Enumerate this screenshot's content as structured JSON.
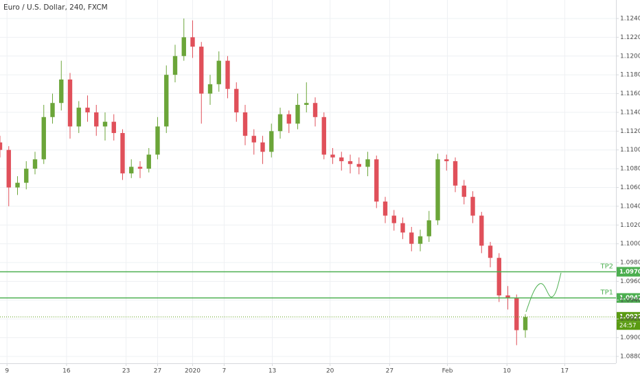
{
  "chart_data": {
    "type": "candlestick",
    "title": "Euro / U.S. Dollar, 240, FXCM",
    "open": [
      1.1108,
      1.11,
      1.106,
      1.1065,
      1.108,
      1.109,
      1.1135,
      1.115,
      1.1175,
      1.1125,
      1.1145,
      1.114,
      1.1125,
      1.113,
      1.1118,
      1.1075,
      1.1082,
      1.108,
      1.1095,
      1.1125,
      1.118,
      1.12,
      1.122,
      1.121,
      1.116,
      1.117,
      1.1195,
      1.1165,
      1.114,
      1.1115,
      1.1108,
      1.1098,
      1.112,
      1.1138,
      1.1128,
      1.1148,
      1.115,
      1.1135,
      1.1095,
      1.1092,
      1.1088,
      1.1085,
      1.1082,
      1.109,
      1.1045,
      1.103,
      1.1022,
      1.1012,
      1.1,
      1.1008,
      1.1025,
      1.109,
      1.1088,
      1.1062,
      1.105,
      1.103,
      1.0998,
      1.0985,
      1.0945,
      1.0942,
      1.0908
    ],
    "high": [
      1.1115,
      1.1104,
      1.1072,
      1.1088,
      1.1098,
      1.1148,
      1.116,
      1.1195,
      1.1182,
      1.1152,
      1.1158,
      1.1148,
      1.114,
      1.1138,
      1.1122,
      1.109,
      1.1088,
      1.1102,
      1.1135,
      1.119,
      1.1212,
      1.124,
      1.1238,
      1.1215,
      1.118,
      1.1205,
      1.12,
      1.1172,
      1.1148,
      1.1122,
      1.1115,
      1.1128,
      1.1145,
      1.1142,
      1.116,
      1.1172,
      1.1156,
      1.114,
      1.1102,
      1.1098,
      1.1095,
      1.1092,
      1.1098,
      1.1094,
      1.105,
      1.1036,
      1.1028,
      1.1018,
      1.1015,
      1.1035,
      1.1096,
      1.1095,
      1.1092,
      1.1068,
      1.1056,
      1.1034,
      1.1002,
      1.099,
      1.0955,
      1.0946,
      1.0925
    ],
    "low": [
      1.1092,
      1.104,
      1.1052,
      1.1058,
      1.1074,
      1.1085,
      1.1128,
      1.1142,
      1.1112,
      1.1118,
      1.113,
      1.1115,
      1.111,
      1.111,
      1.1068,
      1.107,
      1.107,
      1.1076,
      1.109,
      1.1118,
      1.1172,
      1.1195,
      1.1198,
      1.1128,
      1.1148,
      1.1162,
      1.1155,
      1.113,
      1.1105,
      1.1095,
      1.1085,
      1.1092,
      1.1112,
      1.1118,
      1.1122,
      1.114,
      1.1125,
      1.109,
      1.1085,
      1.1078,
      1.1075,
      1.1074,
      1.1072,
      1.1038,
      1.1022,
      1.1014,
      1.1005,
      1.0992,
      1.0992,
      1.1002,
      1.102,
      1.1078,
      1.1055,
      1.1042,
      1.1022,
      1.099,
      1.0975,
      1.0938,
      1.093,
      1.0892,
      1.09
    ],
    "close": [
      1.11,
      1.106,
      1.1065,
      1.108,
      1.109,
      1.1135,
      1.115,
      1.1175,
      1.1125,
      1.1145,
      1.114,
      1.1125,
      1.113,
      1.1118,
      1.1075,
      1.1082,
      1.108,
      1.1095,
      1.1125,
      1.118,
      1.12,
      1.122,
      1.121,
      1.116,
      1.117,
      1.1195,
      1.1165,
      1.114,
      1.1115,
      1.1108,
      1.1098,
      1.112,
      1.1138,
      1.1128,
      1.1148,
      1.115,
      1.1135,
      1.1095,
      1.1092,
      1.1088,
      1.1085,
      1.1082,
      1.109,
      1.1045,
      1.103,
      1.1022,
      1.1012,
      1.1,
      1.1008,
      1.1025,
      1.109,
      1.1088,
      1.1062,
      1.105,
      1.103,
      1.0998,
      1.0985,
      1.0945,
      1.0942,
      1.0908,
      1.0922
    ],
    "up_color": "#6ba539",
    "down_color": "#e0505a",
    "xlim": [
      0,
      70.35
    ],
    "xticks": [
      {
        "value": 0.8,
        "label": "9"
      },
      {
        "value": 7.6,
        "label": "16"
      },
      {
        "value": 14.4,
        "label": "23"
      },
      {
        "value": 18,
        "label": "27"
      },
      {
        "value": 22,
        "label": "2020"
      },
      {
        "value": 25.6,
        "label": "7"
      },
      {
        "value": 31.1,
        "label": "13"
      },
      {
        "value": 37.7,
        "label": "20"
      },
      {
        "value": 44.5,
        "label": "27"
      },
      {
        "value": 51.1,
        "label": "Feb"
      },
      {
        "value": 57.9,
        "label": "10"
      },
      {
        "value": 64.5,
        "label": "17"
      }
    ],
    "ylim": [
      1.08727,
      1.12597
    ],
    "yticks": [
      {
        "value": 1.088,
        "label": "1.08800"
      },
      {
        "value": 1.09,
        "label": "1.09000"
      },
      {
        "value": 1.092,
        "label": "1.09200"
      },
      {
        "value": 1.094,
        "label": "1.09400"
      },
      {
        "value": 1.096,
        "label": "1.09600"
      },
      {
        "value": 1.098,
        "label": "1.09800"
      },
      {
        "value": 1.1,
        "label": "1.10000"
      },
      {
        "value": 1.102,
        "label": "1.10200"
      },
      {
        "value": 1.104,
        "label": "1.10400"
      },
      {
        "value": 1.106,
        "label": "1.10600"
      },
      {
        "value": 1.108,
        "label": "1.10800"
      },
      {
        "value": 1.11,
        "label": "1.11000"
      },
      {
        "value": 1.112,
        "label": "1.11200"
      },
      {
        "value": 1.114,
        "label": "1.11400"
      },
      {
        "value": 1.116,
        "label": "1.11600"
      },
      {
        "value": 1.118,
        "label": "1.11800"
      },
      {
        "value": 1.12,
        "label": "1.12000"
      },
      {
        "value": 1.122,
        "label": "1.12200"
      },
      {
        "value": 1.124,
        "label": "1.12400"
      }
    ],
    "grid": true,
    "levels": [
      {
        "label": "TP2",
        "value": 1.09702,
        "color": "#4caf50"
      },
      {
        "label": "TP1",
        "value": 1.09423,
        "color": "#4caf50"
      }
    ],
    "last_price": {
      "value": 1.09222,
      "countdown": "24:57",
      "color": "#5a9b12"
    }
  }
}
